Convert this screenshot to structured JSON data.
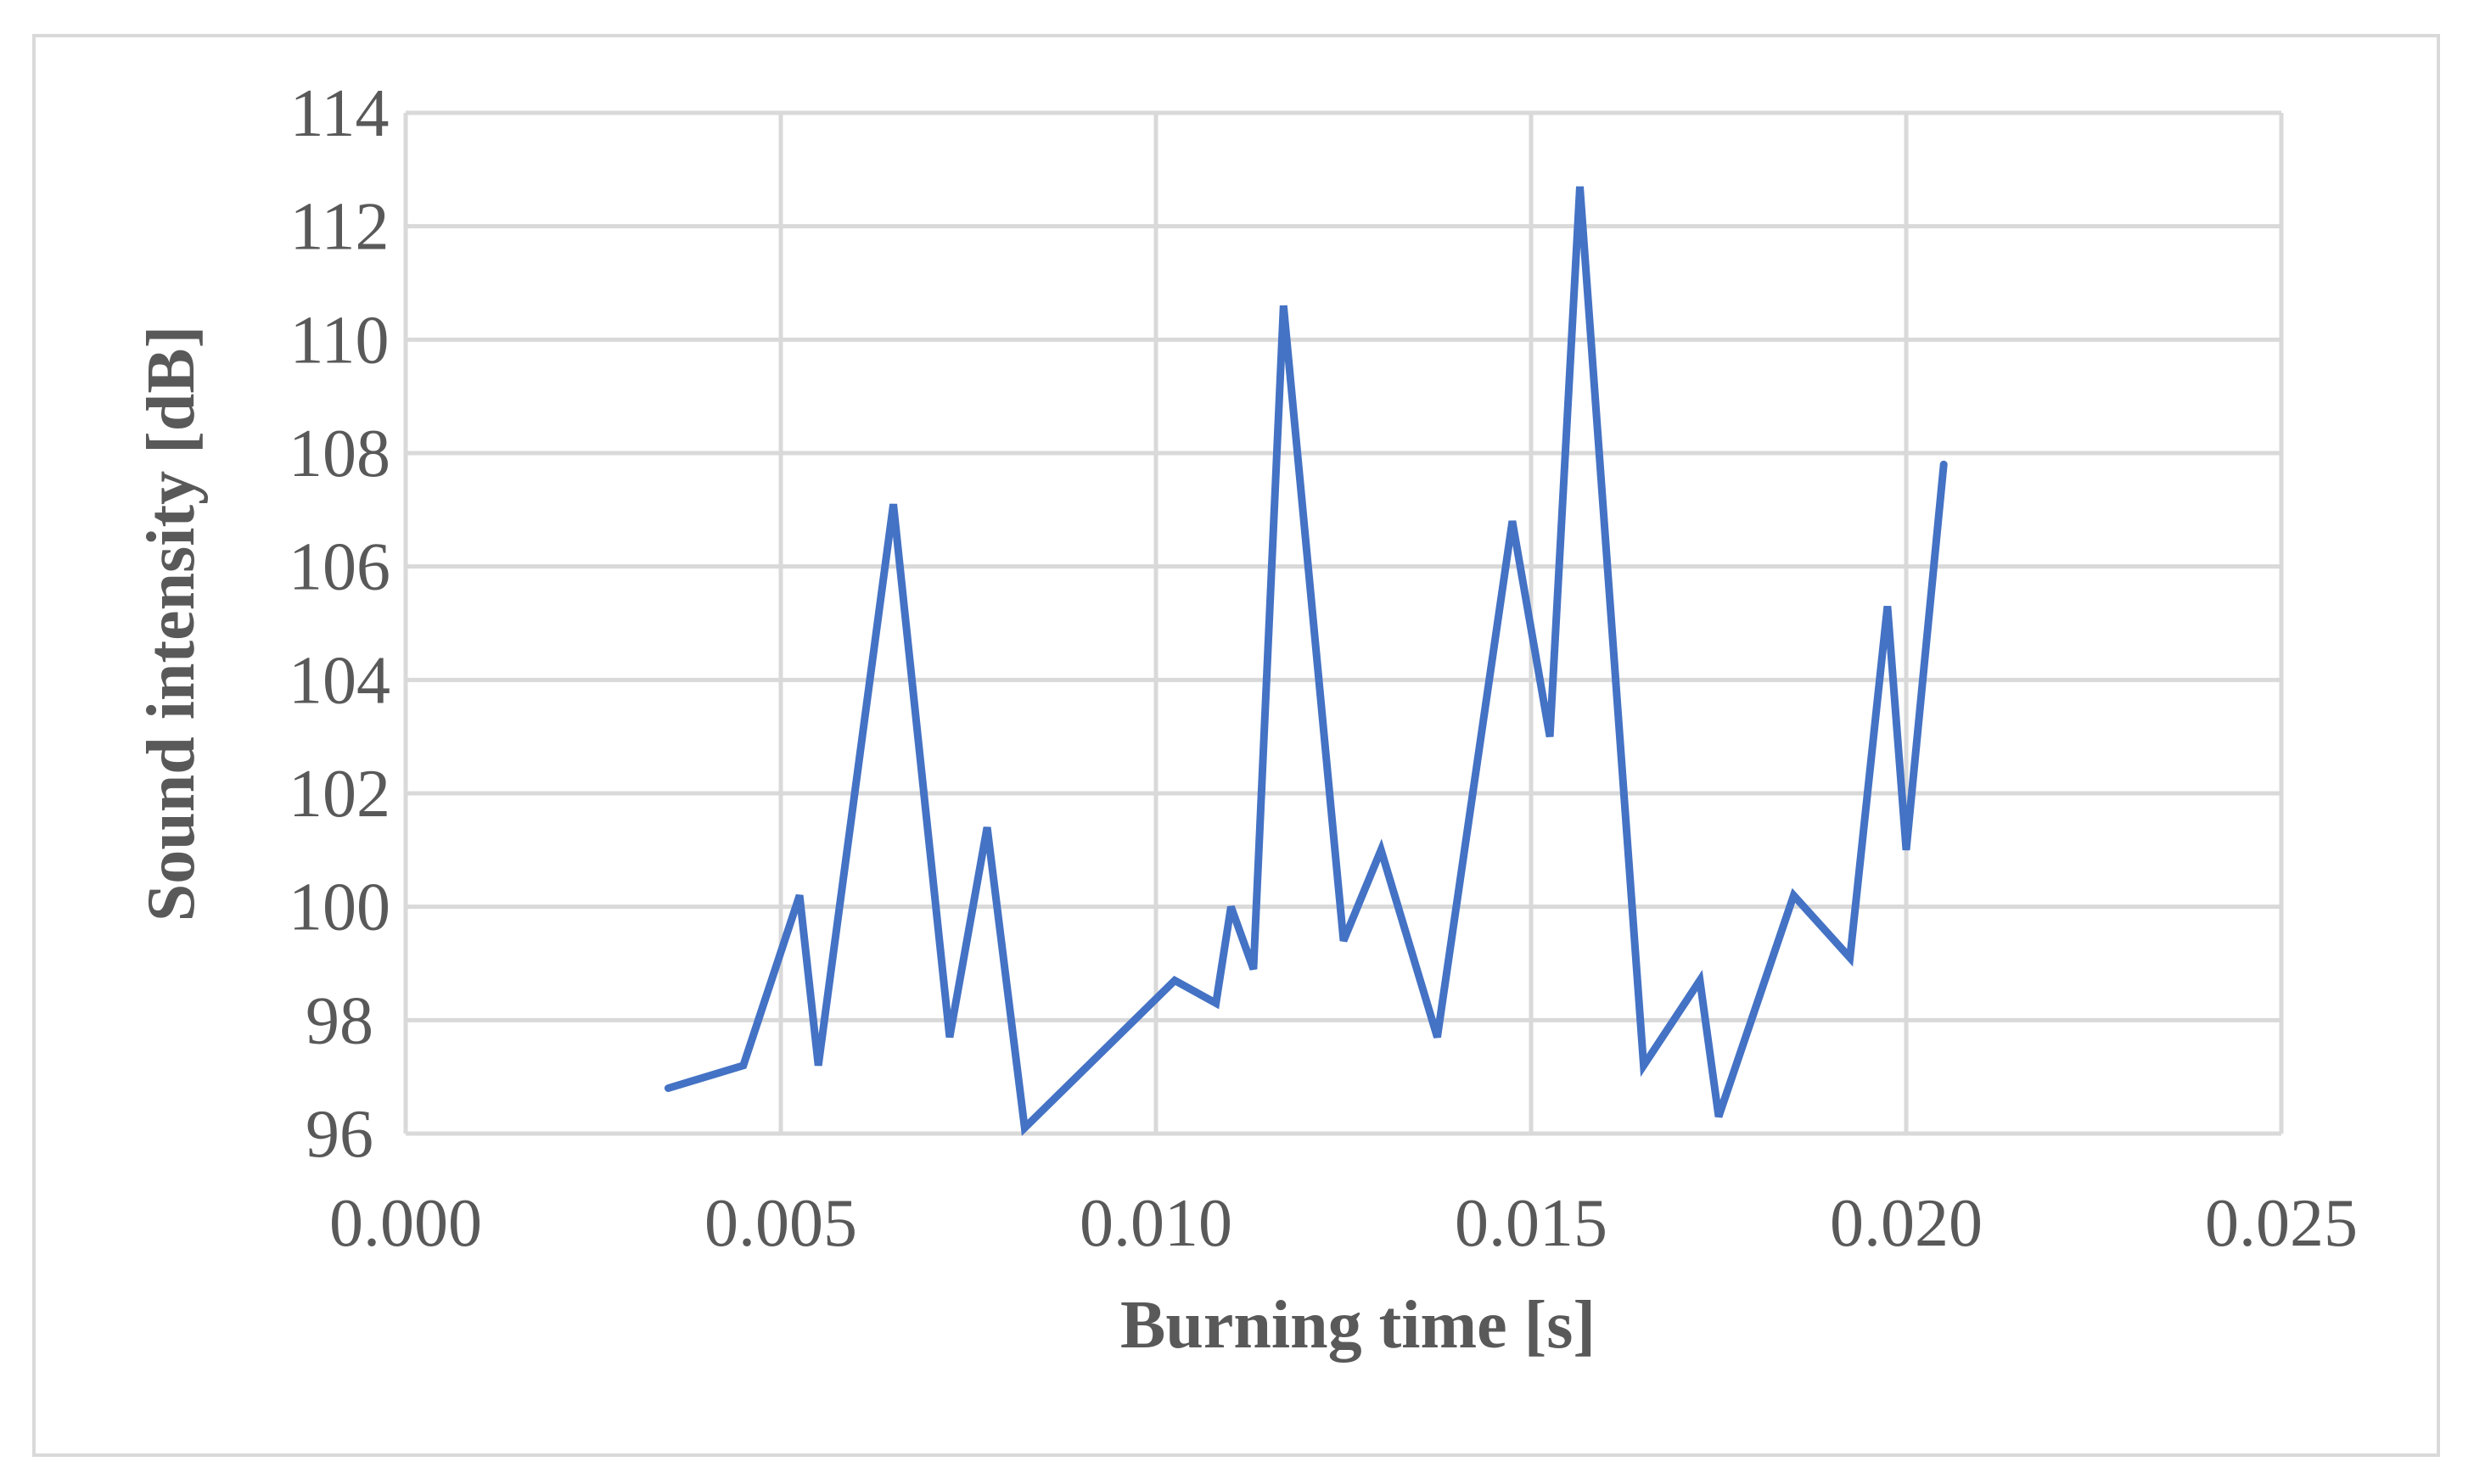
{
  "chart_data": {
    "type": "line",
    "title": "",
    "xlabel": "Burning time [s]",
    "ylabel": "Sound intensity [dB]",
    "xlim": [
      0.0,
      0.025
    ],
    "ylim": [
      96,
      114
    ],
    "x_ticks": [
      0.0,
      0.005,
      0.01,
      0.015,
      0.02,
      0.025
    ],
    "x_tick_labels": [
      "0.000",
      "0.005",
      "0.010",
      "0.015",
      "0.020",
      "0.025"
    ],
    "y_ticks": [
      96,
      98,
      100,
      102,
      104,
      106,
      108,
      110,
      112,
      114
    ],
    "y_tick_labels": [
      "96",
      "98",
      "100",
      "102",
      "104",
      "106",
      "108",
      "110",
      "112",
      "114"
    ],
    "grid": true,
    "legend": "none",
    "colors": {
      "series": "#4472c4",
      "grid": "#d9d9d9",
      "text": "#595959",
      "frame": "#d9d9d9"
    },
    "series": [
      {
        "x": [
          0.0035,
          0.0045,
          0.00525,
          0.0055,
          0.0065,
          0.00725,
          0.00775,
          0.00825,
          0.01025,
          0.0108,
          0.011,
          0.0113,
          0.0117,
          0.0125,
          0.013,
          0.01375,
          0.01475,
          0.01525,
          0.01565,
          0.0165,
          0.01725,
          0.0175,
          0.0185,
          0.01925,
          0.01975,
          0.02,
          0.0205
        ],
        "y": [
          96.8,
          97.2,
          100.2,
          97.2,
          107.1,
          97.7,
          101.4,
          96.1,
          98.7,
          98.3,
          100.0,
          98.9,
          110.6,
          99.4,
          101.0,
          97.7,
          106.8,
          103.0,
          112.7,
          97.2,
          98.7,
          96.3,
          100.2,
          99.1,
          105.3,
          101.0,
          107.8
        ]
      }
    ]
  }
}
